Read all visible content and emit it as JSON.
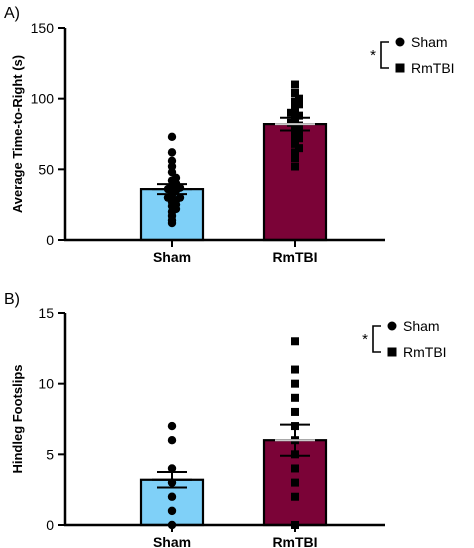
{
  "chart_data": [
    {
      "type": "bar",
      "panel_label": "A)",
      "ylabel": "Average Time-to-Right (s)",
      "ylim": [
        0,
        150
      ],
      "yticks": [
        0,
        50,
        100,
        150
      ],
      "categories": [
        "Sham",
        "RmTBI"
      ],
      "values": [
        36,
        82
      ],
      "sem": [
        3.5,
        4.5
      ],
      "colors": [
        "#7fd0f8",
        "#7b0337"
      ],
      "points": [
        [
          12,
          14,
          17,
          20,
          22,
          24,
          25,
          27,
          28,
          30,
          30,
          32,
          34,
          35,
          36,
          37,
          38,
          40,
          42,
          44,
          48,
          52,
          56,
          62,
          73
        ],
        [
          52,
          58,
          62,
          65,
          68,
          70,
          72,
          74,
          75,
          77,
          78,
          80,
          81,
          83,
          85,
          87,
          88,
          90,
          92,
          94,
          96,
          98,
          100,
          104,
          110
        ]
      ],
      "legend": {
        "significance": "*",
        "items": [
          {
            "name": "Sham",
            "marker": "circle"
          },
          {
            "name": "RmTBI",
            "marker": "square"
          }
        ]
      }
    },
    {
      "type": "bar",
      "panel_label": "B)",
      "ylabel": "Hindleg Footslips",
      "ylim": [
        0,
        15
      ],
      "yticks": [
        0,
        5,
        10,
        15
      ],
      "categories": [
        "Sham",
        "RmTBI"
      ],
      "values": [
        3.2,
        6.0
      ],
      "sem": [
        0.55,
        1.1
      ],
      "colors": [
        "#7fd0f8",
        "#7b0337"
      ],
      "points": [
        [
          0,
          1,
          2,
          3,
          4,
          6,
          7
        ],
        [
          0,
          2,
          3,
          4,
          5,
          6,
          7,
          8,
          9,
          10,
          11,
          13
        ]
      ],
      "legend": {
        "significance": "*",
        "items": [
          {
            "name": "Sham",
            "marker": "circle"
          },
          {
            "name": "RmTBI",
            "marker": "square"
          }
        ]
      }
    }
  ]
}
